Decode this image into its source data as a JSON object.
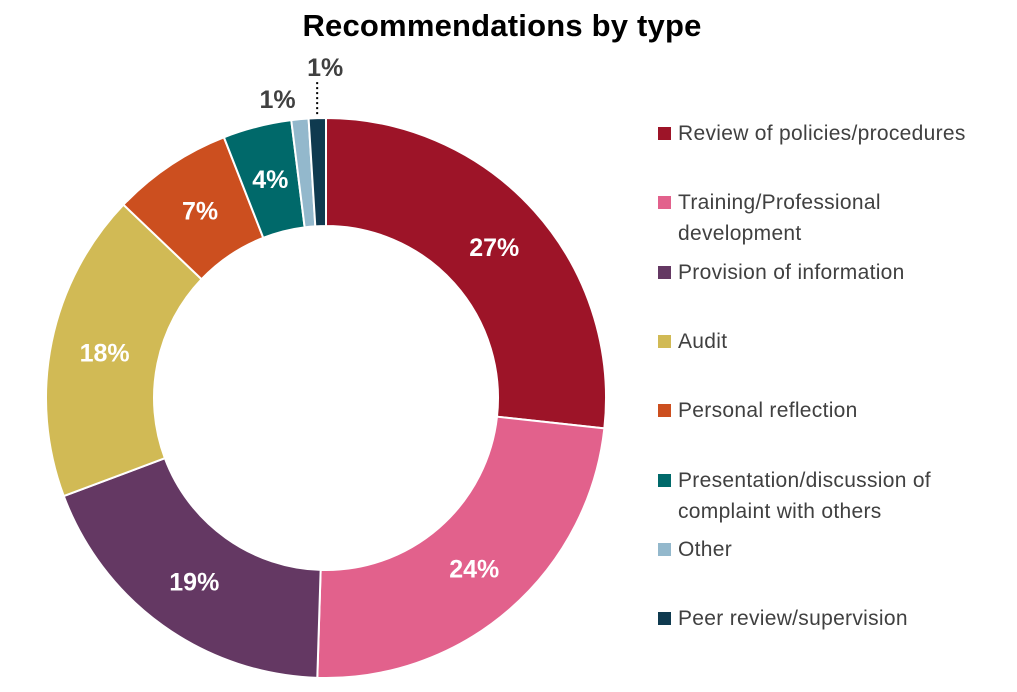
{
  "chart_data": {
    "type": "pie",
    "donut": true,
    "title": "Recommendations by type",
    "legend_position": "right",
    "categories": [
      "Review of policies/procedures",
      "Training/Professional development",
      "Provision of information",
      "Audit",
      "Personal reflection",
      "Presentation/discussion of complaint with others",
      "Other",
      "Peer review/supervision"
    ],
    "values": [
      27,
      24,
      19,
      18,
      7,
      4,
      1,
      1
    ],
    "labels": [
      "27%",
      "24%",
      "19%",
      "18%",
      "7%",
      "4%",
      "1%",
      "1%"
    ],
    "colors": [
      "#9d1428",
      "#e2618c",
      "#643863",
      "#d1ba55",
      "#cc4f1f",
      "#00696a",
      "#93b8cc",
      "#0f3a4f"
    ],
    "label_colors": [
      "#ffffff",
      "#ffffff",
      "#ffffff",
      "#ffffff",
      "#ffffff",
      "#ffffff",
      "#404040",
      "#404040"
    ]
  }
}
